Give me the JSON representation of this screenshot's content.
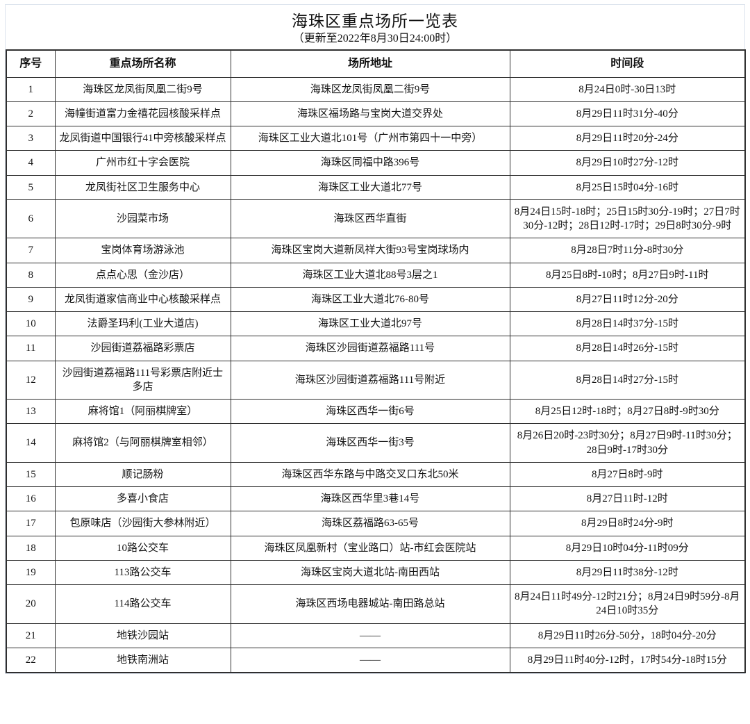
{
  "title": "海珠区重点场所一览表",
  "subtitle": "（更新至2022年8月30日24:00时）",
  "table": {
    "headers": [
      "序号",
      "重点场所名称",
      "场所地址",
      "时间段"
    ],
    "rows": [
      {
        "no": "1",
        "name": "海珠区龙凤街凤凰二街9号",
        "address": "海珠区龙凤街凤凰二街9号",
        "time": "8月24日0时-30日13时"
      },
      {
        "no": "2",
        "name": "海幢街道富力金禧花园核酸采样点",
        "address": "海珠区福场路与宝岗大道交界处",
        "time": "8月29日11时31分-40分"
      },
      {
        "no": "3",
        "name": "龙凤街道中国银行41中旁核酸采样点",
        "address": "海珠区工业大道北101号（广州市第四十一中旁）",
        "time": "8月29日11时20分-24分"
      },
      {
        "no": "4",
        "name": "广州市红十字会医院",
        "address": "海珠区同福中路396号",
        "time": "8月29日10时27分-12时"
      },
      {
        "no": "5",
        "name": "龙凤街社区卫生服务中心",
        "address": "海珠区工业大道北77号",
        "time": "8月25日15时04分-16时"
      },
      {
        "no": "6",
        "name": "沙园菜市场",
        "address": "海珠区西华直街",
        "time": "8月24日15时-18时；25日15时30分-19时；27日7时30分-12时；28日12时-17时；29日8时30分-9时"
      },
      {
        "no": "7",
        "name": "宝岗体育场游泳池",
        "address": "海珠区宝岗大道新凤祥大街93号宝岗球场内",
        "time": "8月28日7时11分-8时30分"
      },
      {
        "no": "8",
        "name": "点点心思（金沙店）",
        "address": "海珠区工业大道北88号3层之1",
        "time": "8月25日8时-10时；8月27日9时-11时"
      },
      {
        "no": "9",
        "name": "龙凤街道家信商业中心核酸采样点",
        "address": "海珠区工业大道北76-80号",
        "time": "8月27日11时12分-20分"
      },
      {
        "no": "10",
        "name": "法爵圣玛利(工业大道店)",
        "address": "海珠区工业大道北97号",
        "time": "8月28日14时37分-15时"
      },
      {
        "no": "11",
        "name": "沙园街道荔福路彩票店",
        "address": "海珠区沙园街道荔福路111号",
        "time": "8月28日14时26分-15时"
      },
      {
        "no": "12",
        "name": "沙园街道荔福路111号彩票店附近士多店",
        "address": "海珠区沙园街道荔福路111号附近",
        "time": "8月28日14时27分-15时"
      },
      {
        "no": "13",
        "name": "麻将馆1（阿丽棋牌室）",
        "address": "海珠区西华一街6号",
        "time": "8月25日12时-18时；8月27日8时-9时30分"
      },
      {
        "no": "14",
        "name": "麻将馆2（与阿丽棋牌室相邻）",
        "address": "海珠区西华一街3号",
        "time": "8月26日20时-23时30分；8月27日9时-11时30分；28日9时-17时30分"
      },
      {
        "no": "15",
        "name": "顺记肠粉",
        "address": "海珠区西华东路与中路交叉口东北50米",
        "time": "8月27日8时-9时"
      },
      {
        "no": "16",
        "name": "多喜小食店",
        "address": "海珠区西华里3巷14号",
        "time": "8月27日11时-12时"
      },
      {
        "no": "17",
        "name": "包原味店（沙园街大参林附近）",
        "address": "海珠区荔福路63-65号",
        "time": "8月29日8时24分-9时"
      },
      {
        "no": "18",
        "name": "10路公交车",
        "address": "海珠区凤凰新村（宝业路口）站-市红会医院站",
        "time": "8月29日10时04分-11时09分"
      },
      {
        "no": "19",
        "name": "113路公交车",
        "address": "海珠区宝岗大道北站-南田西站",
        "time": "8月29日11时38分-12时"
      },
      {
        "no": "20",
        "name": "114路公交车",
        "address": "海珠区西场电器城站-南田路总站",
        "time": "8月24日11时49分-12时21分；8月24日9时59分-8月24日10时35分"
      },
      {
        "no": "21",
        "name": "地铁沙园站",
        "address": "——",
        "time": "8月29日11时26分-50分，18时04分-20分"
      },
      {
        "no": "22",
        "name": "地铁南洲站",
        "address": "——",
        "time": "8月29日11时40分-12时，17时54分-18时15分"
      }
    ]
  }
}
